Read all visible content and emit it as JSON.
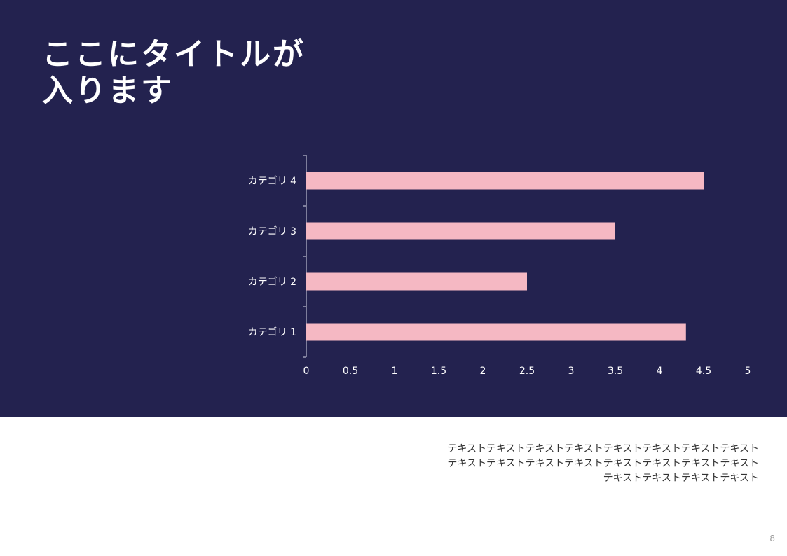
{
  "slide": {
    "title_lines": [
      "ここにタイトルが",
      "入ります"
    ],
    "body_text_lines": [
      "テキストテキストテキストテキストテキストテキストテキストテキスト",
      "テキストテキストテキストテキストテキストテキストテキストテキスト",
      "テキストテキストテキストテキスト"
    ],
    "page_number": "8"
  },
  "colors": {
    "panel_background": "#23224f",
    "bar": "#f5b8c3",
    "title": "#ffffff",
    "body_text": "#333333"
  },
  "chart_data": {
    "type": "bar",
    "orientation": "horizontal",
    "categories": [
      "カテゴリ 1",
      "カテゴリ 2",
      "カテゴリ 3",
      "カテゴリ 4"
    ],
    "values": [
      4.3,
      2.5,
      3.5,
      4.5
    ],
    "xlim": [
      0,
      5
    ],
    "x_tick_labels": [
      "0",
      "0.5",
      "1",
      "1.5",
      "2",
      "2.5",
      "3",
      "3.5",
      "4",
      "4.5",
      "5"
    ],
    "title": "",
    "xlabel": "",
    "ylabel": "",
    "grid": false,
    "legend": "none"
  }
}
